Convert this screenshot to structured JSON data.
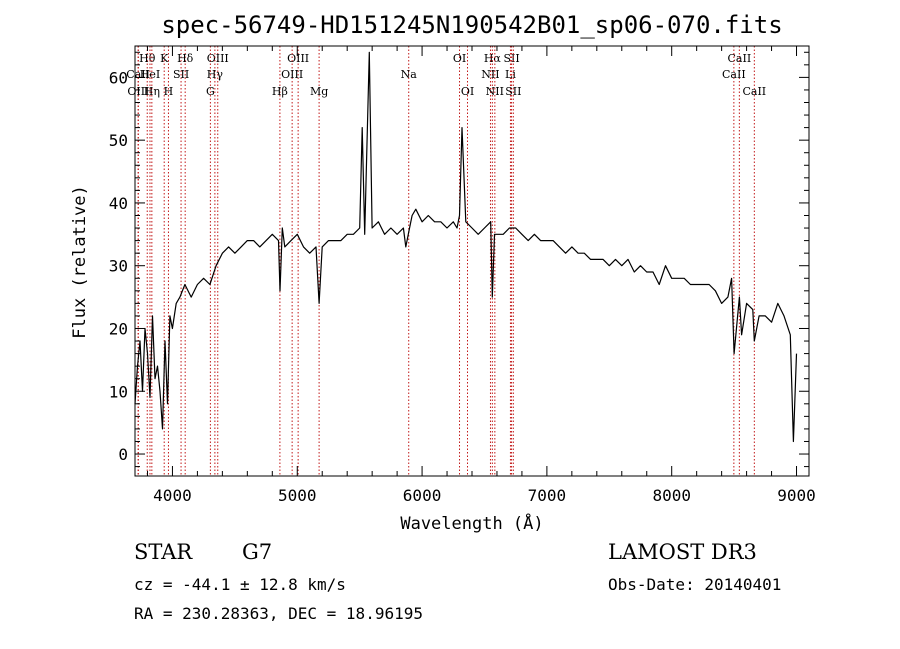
{
  "chart_data": {
    "type": "line",
    "title": "spec-56749-HD151245N190542B01_sp06-070.fits",
    "xlabel": "Wavelength (Å)",
    "ylabel": "Flux (relative)",
    "xlim": [
      3700,
      9100
    ],
    "ylim": [
      -3.5,
      65
    ],
    "xticks": [
      4000,
      5000,
      6000,
      7000,
      8000,
      9000
    ],
    "yticks": [
      0,
      10,
      20,
      30,
      40,
      50,
      60
    ],
    "grid": false,
    "series": [
      {
        "name": "spectrum",
        "x": [
          3700,
          3720,
          3740,
          3760,
          3780,
          3800,
          3820,
          3840,
          3860,
          3880,
          3900,
          3920,
          3940,
          3960,
          3980,
          4000,
          4030,
          4060,
          4100,
          4150,
          4200,
          4250,
          4300,
          4350,
          4400,
          4450,
          4500,
          4550,
          4600,
          4650,
          4700,
          4750,
          4800,
          4850,
          4862,
          4880,
          4900,
          4950,
          5000,
          5050,
          5100,
          5150,
          5175,
          5200,
          5250,
          5300,
          5350,
          5400,
          5450,
          5500,
          5520,
          5540,
          5577,
          5600,
          5650,
          5700,
          5750,
          5800,
          5850,
          5870,
          5890,
          5920,
          5950,
          6000,
          6050,
          6100,
          6150,
          6200,
          6250,
          6280,
          6300,
          6320,
          6350,
          6400,
          6450,
          6500,
          6550,
          6563,
          6580,
          6600,
          6650,
          6700,
          6750,
          6800,
          6850,
          6900,
          6950,
          7000,
          7050,
          7100,
          7150,
          7200,
          7250,
          7300,
          7350,
          7400,
          7450,
          7500,
          7550,
          7600,
          7650,
          7700,
          7750,
          7800,
          7850,
          7900,
          7950,
          8000,
          8050,
          8100,
          8150,
          8200,
          8250,
          8300,
          8350,
          8400,
          8450,
          8480,
          8500,
          8542,
          8560,
          8600,
          8650,
          8662,
          8700,
          8750,
          8800,
          8850,
          8900,
          8950,
          8975,
          9000
        ],
        "y": [
          8,
          14,
          18,
          10,
          20,
          16,
          9,
          22,
          12,
          14,
          10,
          4,
          18,
          8,
          22,
          20,
          24,
          25,
          27,
          25,
          27,
          28,
          27,
          30,
          32,
          33,
          32,
          33,
          34,
          34,
          33,
          34,
          35,
          34,
          26,
          36,
          33,
          34,
          35,
          33,
          32,
          33,
          24,
          33,
          34,
          34,
          34,
          35,
          35,
          36,
          52,
          35,
          64,
          36,
          37,
          35,
          36,
          35,
          36,
          33,
          35,
          38,
          39,
          37,
          38,
          37,
          37,
          36,
          37,
          36,
          38,
          52,
          37,
          36,
          35,
          36,
          37,
          25,
          35,
          35,
          35,
          36,
          36,
          35,
          34,
          35,
          34,
          34,
          34,
          33,
          32,
          33,
          32,
          32,
          31,
          31,
          31,
          30,
          31,
          30,
          31,
          29,
          30,
          29,
          29,
          27,
          30,
          28,
          28,
          28,
          27,
          27,
          27,
          27,
          26,
          24,
          25,
          28,
          16,
          25,
          19,
          24,
          23,
          18,
          22,
          22,
          21,
          24,
          22,
          19,
          2,
          16
        ]
      }
    ],
    "line_markers": [
      {
        "label": "Hθ",
        "x": 3798,
        "row": 1
      },
      {
        "label": "CaII",
        "x": 3725,
        "row": 2
      },
      {
        "label": "OIII",
        "x": 3727,
        "row": 3
      },
      {
        "label": "HeI",
        "x": 3820,
        "row": 2
      },
      {
        "label": "Hη",
        "x": 3835,
        "row": 3
      },
      {
        "label": "K",
        "x": 3934,
        "row": 1
      },
      {
        "label": "SII",
        "x": 4069,
        "row": 2
      },
      {
        "label": "H",
        "x": 3968,
        "row": 3
      },
      {
        "label": "Hδ",
        "x": 4102,
        "row": 1
      },
      {
        "label": "OIII",
        "x": 4363,
        "row": 1
      },
      {
        "label": "Hγ",
        "x": 4340,
        "row": 2
      },
      {
        "label": "G",
        "x": 4304,
        "row": 3
      },
      {
        "label": "Hβ",
        "x": 4861,
        "row": 3
      },
      {
        "label": "OIII",
        "x": 5007,
        "row": 1
      },
      {
        "label": "OIII",
        "x": 4959,
        "row": 2
      },
      {
        "label": "Mg",
        "x": 5175,
        "row": 3
      },
      {
        "label": "Na",
        "x": 5893,
        "row": 2
      },
      {
        "label": "OI",
        "x": 6300,
        "row": 1
      },
      {
        "label": "OI",
        "x": 6364,
        "row": 3
      },
      {
        "label": "Hα",
        "x": 6563,
        "row": 1
      },
      {
        "label": "NII",
        "x": 6548,
        "row": 2
      },
      {
        "label": "NII",
        "x": 6583,
        "row": 3
      },
      {
        "label": "SII",
        "x": 6717,
        "row": 1
      },
      {
        "label": "Li",
        "x": 6708,
        "row": 2
      },
      {
        "label": "SII",
        "x": 6731,
        "row": 3
      },
      {
        "label": "CaII",
        "x": 8542,
        "row": 1
      },
      {
        "label": "CaII",
        "x": 8498,
        "row": 2
      },
      {
        "label": "CaII",
        "x": 8662,
        "row": 3
      }
    ]
  },
  "info": {
    "object_class": "STAR",
    "subclass": "G7",
    "survey": "LAMOST DR3",
    "redshift": "cz = -44.1 ± 12.8 km/s",
    "obs_date": "Obs-Date: 20140401",
    "coordinates": "RA = 230.28363, DEC =  18.96195"
  }
}
